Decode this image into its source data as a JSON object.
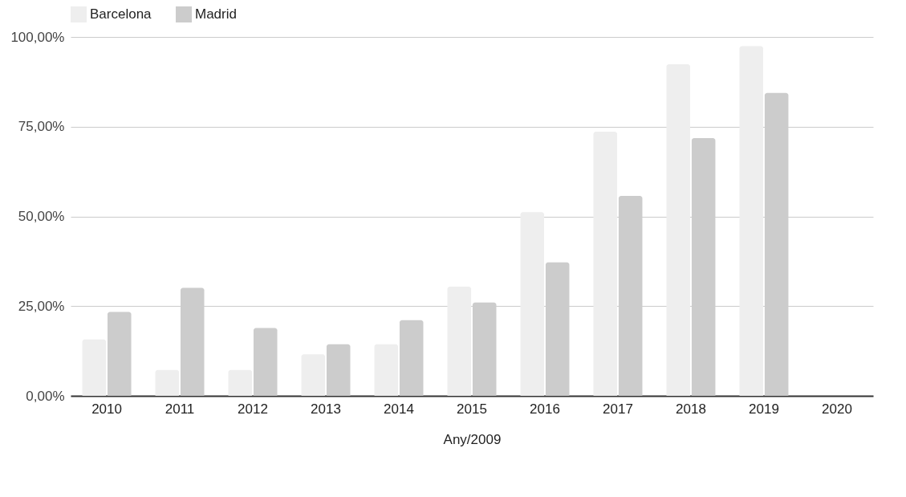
{
  "chart_data": {
    "type": "bar",
    "xlabel": "Any/2009",
    "categories": [
      "2010",
      "2011",
      "2012",
      "2013",
      "2014",
      "2015",
      "2016",
      "2017",
      "2018",
      "2019",
      "2020"
    ],
    "series": [
      {
        "name": "Barcelona",
        "color": "#eeeeee",
        "values": [
          15.7,
          7.2,
          7.2,
          11.6,
          14.4,
          30.4,
          51.2,
          73.6,
          92.4,
          97.4,
          null
        ]
      },
      {
        "name": "Madrid",
        "color": "#cccccc",
        "values": [
          23.4,
          30.1,
          18.9,
          14.4,
          21.1,
          26.0,
          37.2,
          55.7,
          71.8,
          84.4,
          null
        ]
      }
    ],
    "ylim": [
      0,
      100
    ],
    "yticks": [
      {
        "value": 0,
        "label": "0,00%"
      },
      {
        "value": 25,
        "label": "25,00%"
      },
      {
        "value": 50,
        "label": "50,00%"
      },
      {
        "value": 75,
        "label": "75,00%"
      },
      {
        "value": 100,
        "label": "100,00%"
      }
    ],
    "grid": "y",
    "legend": "top"
  }
}
